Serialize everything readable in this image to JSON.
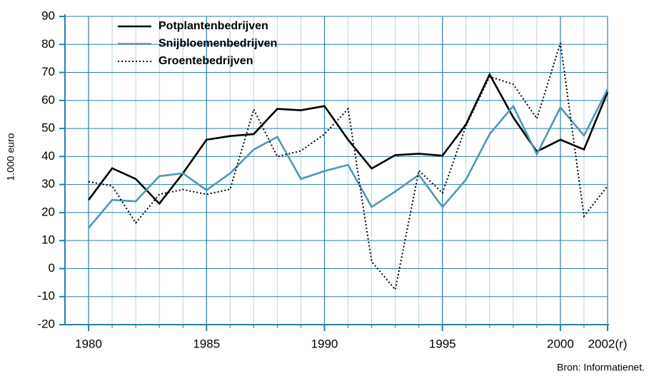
{
  "chart_data": {
    "type": "line",
    "ylabel": "1.000 euro",
    "source": "Bron: Informatienet.",
    "x": [
      1980,
      1981,
      1982,
      1983,
      1984,
      1985,
      1986,
      1987,
      1988,
      1989,
      1990,
      1991,
      1992,
      1993,
      1994,
      1995,
      1996,
      1997,
      1998,
      1999,
      2000,
      2001,
      2002
    ],
    "series": [
      {
        "name": "Potplantenbedrijven",
        "color": "#000000",
        "style": "solid",
        "values": [
          24.5,
          35.8,
          32,
          23.2,
          34,
          46,
          47.3,
          48,
          57,
          56.5,
          58,
          46,
          35.7,
          40.5,
          41,
          40.3,
          51.5,
          69.3,
          54,
          41.8,
          46,
          42.5,
          63
        ]
      },
      {
        "name": "Snijbloemenbedrijven",
        "color": "#4f97b5",
        "style": "solid",
        "values": [
          14.5,
          24.5,
          24,
          33,
          34,
          28,
          34,
          42.5,
          47,
          32,
          34.8,
          37,
          22,
          27.5,
          33.5,
          22,
          31.8,
          48,
          58,
          40.8,
          57.5,
          47.5,
          64
        ]
      },
      {
        "name": "Groentebedrijven",
        "color": "#000000",
        "style": "dotted",
        "values": [
          31,
          29.5,
          16.3,
          26.5,
          28.2,
          26.5,
          28.3,
          56.8,
          40,
          42,
          48,
          57,
          2.5,
          -7.5,
          35,
          27,
          51,
          68.5,
          65.8,
          53.5,
          80.5,
          18.7,
          29.5
        ]
      }
    ],
    "xlim": [
      1979,
      2002
    ],
    "xticks": [
      1980,
      1985,
      1990,
      1995,
      2000,
      {
        "value": 2002,
        "label": "2002(r)"
      }
    ],
    "ylim": [
      -20,
      90
    ],
    "yticks": [
      -20,
      -10,
      0,
      10,
      20,
      30,
      40,
      50,
      60,
      70,
      80,
      90
    ],
    "grid": true,
    "legend": "upper-left"
  }
}
